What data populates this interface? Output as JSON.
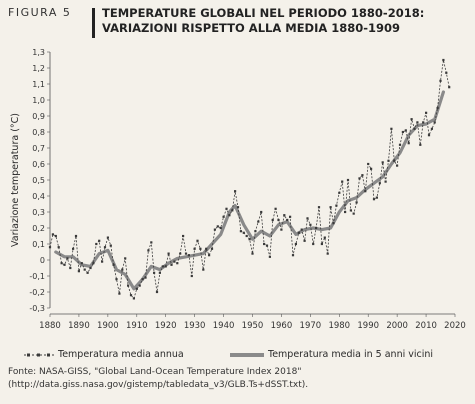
{
  "figure_label": "FIGURA 5",
  "title_lines": [
    "TEMPERATURE GLOBALI NEL PERIODO 1880-2018:",
    "VARIAZIONI RISPETTO ALLA MEDIA 1880-1909"
  ],
  "legend": {
    "annual": "Temperatura media annua",
    "smooth": "Temperatura media in 5 anni vicini"
  },
  "source": "Fonte: NASA-GISS, \"Global Land-Ocean Temperature Index 2018\" (http://data.giss.nasa.gov/gistemp/tabledata_v3/GLB.Ts+dSST.txt).",
  "colors": {
    "annual": "#3a3a3a",
    "smooth": "#8a8a8a",
    "background": "#f4f1ea"
  },
  "chart_data": {
    "type": "line",
    "ylabel": "Variazione temperatura (°C)",
    "xlim": [
      1880,
      2020
    ],
    "ylim": [
      -0.3,
      1.3
    ],
    "x_ticks": [
      1880,
      1890,
      1900,
      1910,
      1920,
      1930,
      1940,
      1950,
      1960,
      1970,
      1980,
      1990,
      2000,
      2010,
      2020
    ],
    "y_ticks": [
      -0.3,
      -0.2,
      -0.1,
      0,
      0.1,
      0.2,
      0.3,
      0.4,
      0.5,
      0.6,
      0.7,
      0.8,
      0.9,
      1,
      1.1,
      1.2,
      1.3
    ],
    "y_tick_labels": [
      "-0,3",
      "-0,2",
      "-0,1",
      "0",
      "0,1",
      "0,2",
      "0,3",
      "0,4",
      "0,5",
      "0,6",
      "0,7",
      "0,8",
      "0,9",
      "1,0",
      "1,1",
      "1,2",
      "1,3"
    ],
    "grid": false,
    "series": [
      {
        "name": "Temperatura media annua",
        "style": "dashed-markers",
        "x": [
          1880,
          1881,
          1882,
          1883,
          1884,
          1885,
          1886,
          1887,
          1888,
          1889,
          1890,
          1891,
          1892,
          1893,
          1894,
          1895,
          1896,
          1897,
          1898,
          1899,
          1900,
          1901,
          1902,
          1903,
          1904,
          1905,
          1906,
          1907,
          1908,
          1909,
          1910,
          1911,
          1912,
          1913,
          1914,
          1915,
          1916,
          1917,
          1918,
          1919,
          1920,
          1921,
          1922,
          1923,
          1924,
          1925,
          1926,
          1927,
          1928,
          1929,
          1930,
          1931,
          1932,
          1933,
          1934,
          1935,
          1936,
          1937,
          1938,
          1939,
          1940,
          1941,
          1942,
          1943,
          1944,
          1945,
          1946,
          1947,
          1948,
          1949,
          1950,
          1951,
          1952,
          1953,
          1954,
          1955,
          1956,
          1957,
          1958,
          1959,
          1960,
          1961,
          1962,
          1963,
          1964,
          1965,
          1966,
          1967,
          1968,
          1969,
          1970,
          1971,
          1972,
          1973,
          1974,
          1975,
          1976,
          1977,
          1978,
          1979,
          1980,
          1981,
          1982,
          1983,
          1984,
          1985,
          1986,
          1987,
          1988,
          1989,
          1990,
          1991,
          1992,
          1993,
          1994,
          1995,
          1996,
          1997,
          1998,
          1999,
          2000,
          2001,
          2002,
          2003,
          2004,
          2005,
          2006,
          2007,
          2008,
          2009,
          2010,
          2011,
          2012,
          2013,
          2014,
          2015,
          2016,
          2017,
          2018
        ],
        "y": [
          0.08,
          0.16,
          0.15,
          0.08,
          -0.02,
          -0.03,
          0.01,
          -0.05,
          0.07,
          0.15,
          -0.07,
          -0.02,
          -0.06,
          -0.08,
          -0.05,
          -0.02,
          0.1,
          0.12,
          -0.01,
          0.08,
          0.14,
          0.09,
          -0.03,
          -0.12,
          -0.21,
          -0.06,
          0.01,
          -0.16,
          -0.22,
          -0.24,
          -0.18,
          -0.16,
          -0.12,
          -0.11,
          0.06,
          0.11,
          -0.08,
          -0.2,
          -0.08,
          -0.04,
          -0.04,
          0.04,
          -0.03,
          -0.01,
          -0.02,
          0.04,
          0.15,
          0.04,
          0.03,
          -0.1,
          0.07,
          0.12,
          0.07,
          -0.06,
          0.07,
          0.03,
          0.07,
          0.19,
          0.21,
          0.2,
          0.27,
          0.32,
          0.28,
          0.31,
          0.43,
          0.33,
          0.18,
          0.17,
          0.15,
          0.13,
          0.04,
          0.18,
          0.24,
          0.3,
          0.1,
          0.09,
          0.02,
          0.25,
          0.32,
          0.25,
          0.19,
          0.28,
          0.25,
          0.27,
          0.03,
          0.1,
          0.17,
          0.19,
          0.12,
          0.26,
          0.22,
          0.1,
          0.2,
          0.33,
          0.1,
          0.14,
          0.04,
          0.33,
          0.23,
          0.34,
          0.42,
          0.49,
          0.3,
          0.5,
          0.31,
          0.29,
          0.36,
          0.51,
          0.53,
          0.43,
          0.6,
          0.57,
          0.38,
          0.39,
          0.48,
          0.61,
          0.49,
          0.62,
          0.82,
          0.62,
          0.59,
          0.72,
          0.8,
          0.81,
          0.73,
          0.88,
          0.82,
          0.86,
          0.72,
          0.86,
          0.92,
          0.78,
          0.82,
          0.86,
          0.95,
          1.12,
          1.25,
          1.17,
          1.08
        ]
      },
      {
        "name": "Temperatura media in 5 anni vicini",
        "style": "thick-solid",
        "x": [
          1882,
          1885,
          1888,
          1891,
          1894,
          1897,
          1900,
          1903,
          1906,
          1909,
          1912,
          1915,
          1918,
          1921,
          1924,
          1927,
          1930,
          1933,
          1936,
          1939,
          1942,
          1944,
          1947,
          1950,
          1953,
          1956,
          1959,
          1962,
          1965,
          1968,
          1971,
          1974,
          1977,
          1980,
          1983,
          1986,
          1989,
          1992,
          1995,
          1998,
          2001,
          2004,
          2007,
          2010,
          2013,
          2016
        ],
        "y": [
          0.05,
          0.02,
          0.02,
          -0.03,
          -0.04,
          0.04,
          0.06,
          -0.06,
          -0.09,
          -0.18,
          -0.12,
          -0.04,
          -0.06,
          -0.02,
          0.01,
          0.02,
          0.03,
          0.04,
          0.1,
          0.16,
          0.3,
          0.34,
          0.22,
          0.13,
          0.18,
          0.15,
          0.22,
          0.24,
          0.16,
          0.19,
          0.2,
          0.19,
          0.2,
          0.3,
          0.37,
          0.39,
          0.44,
          0.48,
          0.52,
          0.6,
          0.67,
          0.78,
          0.84,
          0.85,
          0.88,
          1.05
        ]
      }
    ]
  }
}
